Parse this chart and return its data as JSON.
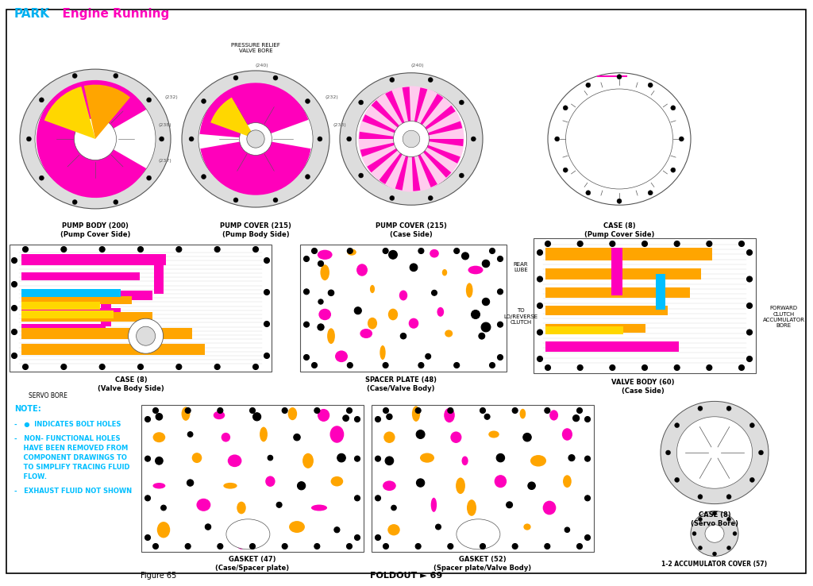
{
  "title_park": "PARK",
  "title_engine": "  Engine Running",
  "title_park_color": "#00B0F0",
  "title_engine_color": "#FF00BB",
  "bg_color": "#FFFFFF",
  "border_color": "#000000",
  "figure_caption": "Figure 65",
  "foldout_text": "FOLDOUT ► 69",
  "note_color": "#00B0F0",
  "note_bold_color": "#00B0F0",
  "magenta": "#FF00BB",
  "orange": "#FFA500",
  "yellow": "#FFD700",
  "cyan": "#00BFFF",
  "gray_line": "#AAAAAA",
  "dark": "#333333",
  "figsize": [
    10.24,
    7.38
  ],
  "dpi": 100
}
